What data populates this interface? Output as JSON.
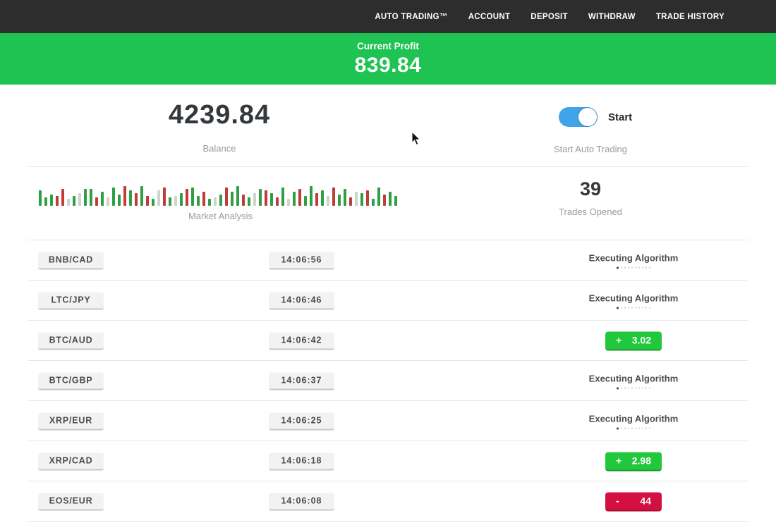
{
  "nav": {
    "items": [
      "AUTO TRADING™",
      "ACCOUNT",
      "DEPOSIT",
      "WITHDRAW",
      "TRADE HISTORY"
    ]
  },
  "banner": {
    "label": "Current Profit",
    "value": "839.84"
  },
  "account": {
    "balance": "4239.84",
    "balance_label": "Balance",
    "toggle_label": "Start",
    "toggle_caption": "Start Auto Trading",
    "toggle_state": "on"
  },
  "market": {
    "chart_label": "Market Analysis",
    "trades_opened": "39",
    "trades_opened_label": "Trades Opened"
  },
  "chart_data": {
    "type": "bar",
    "title": "Market Analysis",
    "xlabel": "",
    "ylabel": "",
    "ylim": [
      0,
      31
    ],
    "grid": false,
    "legend": false,
    "palette": {
      "g": "#2f9e44",
      "r": "#c23b3b",
      "n": "#ccd4cc"
    },
    "bars": [
      [
        22,
        "g"
      ],
      [
        12,
        "g"
      ],
      [
        16,
        "g"
      ],
      [
        14,
        "r"
      ],
      [
        24,
        "r"
      ],
      [
        10,
        "n"
      ],
      [
        14,
        "g"
      ],
      [
        18,
        "n"
      ],
      [
        24,
        "g"
      ],
      [
        24,
        "g"
      ],
      [
        12,
        "r"
      ],
      [
        20,
        "g"
      ],
      [
        12,
        "n"
      ],
      [
        26,
        "g"
      ],
      [
        16,
        "g"
      ],
      [
        28,
        "r"
      ],
      [
        22,
        "g"
      ],
      [
        18,
        "r"
      ],
      [
        28,
        "g"
      ],
      [
        14,
        "r"
      ],
      [
        10,
        "g"
      ],
      [
        22,
        "n"
      ],
      [
        26,
        "r"
      ],
      [
        12,
        "g"
      ],
      [
        14,
        "n"
      ],
      [
        18,
        "g"
      ],
      [
        24,
        "r"
      ],
      [
        26,
        "g"
      ],
      [
        14,
        "g"
      ],
      [
        20,
        "r"
      ],
      [
        10,
        "g"
      ],
      [
        12,
        "n"
      ],
      [
        16,
        "g"
      ],
      [
        26,
        "r"
      ],
      [
        20,
        "g"
      ],
      [
        28,
        "g"
      ],
      [
        16,
        "r"
      ],
      [
        12,
        "g"
      ],
      [
        18,
        "n"
      ],
      [
        24,
        "g"
      ],
      [
        22,
        "r"
      ],
      [
        18,
        "g"
      ],
      [
        12,
        "r"
      ],
      [
        26,
        "g"
      ],
      [
        10,
        "n"
      ],
      [
        20,
        "g"
      ],
      [
        24,
        "r"
      ],
      [
        14,
        "g"
      ],
      [
        28,
        "g"
      ],
      [
        18,
        "r"
      ],
      [
        22,
        "g"
      ],
      [
        14,
        "n"
      ],
      [
        26,
        "r"
      ],
      [
        16,
        "g"
      ],
      [
        24,
        "g"
      ],
      [
        12,
        "r"
      ],
      [
        20,
        "n"
      ],
      [
        18,
        "g"
      ],
      [
        22,
        "r"
      ],
      [
        10,
        "g"
      ],
      [
        26,
        "g"
      ],
      [
        16,
        "r"
      ],
      [
        20,
        "g"
      ],
      [
        14,
        "g"
      ]
    ]
  },
  "status_dots": {
    "total": 10,
    "active": 1
  },
  "trades": [
    {
      "pair": "BNB/CAD",
      "time": "14:06:56",
      "status": "executing",
      "status_label": "Executing Algorithm"
    },
    {
      "pair": "LTC/JPY",
      "time": "14:06:46",
      "status": "executing",
      "status_label": "Executing Algorithm"
    },
    {
      "pair": "BTC/AUD",
      "time": "14:06:42",
      "status": "result",
      "sign": "+",
      "value": "3.02",
      "color": "green"
    },
    {
      "pair": "BTC/GBP",
      "time": "14:06:37",
      "status": "executing",
      "status_label": "Executing Algorithm"
    },
    {
      "pair": "XRP/EUR",
      "time": "14:06:25",
      "status": "executing",
      "status_label": "Executing Algorithm"
    },
    {
      "pair": "XRP/CAD",
      "time": "14:06:18",
      "status": "result",
      "sign": "+",
      "value": "2.98",
      "color": "green"
    },
    {
      "pair": "EOS/EUR",
      "time": "14:06:08",
      "status": "result",
      "sign": "-",
      "value": "44",
      "color": "red"
    }
  ],
  "colors": {
    "nav_bg": "#2d2d2d",
    "banner_green": "#1fc351",
    "badge_green": "#21c83c",
    "badge_red": "#d40f42",
    "toggle_blue": "#41a3e8",
    "text_dark": "#33383d",
    "text_gray": "#9a9a9a",
    "pill_bg": "#f2f2f2",
    "pill_border": "#c7c7c7",
    "separator": "#e6e6e6"
  }
}
